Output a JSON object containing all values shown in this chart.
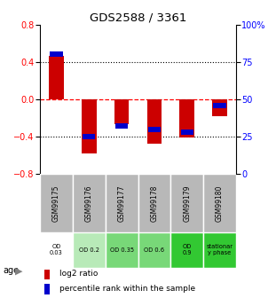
{
  "title": "GDS2588 / 3361",
  "samples": [
    "GSM99175",
    "GSM99176",
    "GSM99177",
    "GSM99178",
    "GSM99179",
    "GSM99180"
  ],
  "log2_bar_heights": [
    0.46,
    -0.58,
    -0.27,
    -0.48,
    -0.41,
    -0.18
  ],
  "pct_ranks": [
    80,
    25,
    32,
    30,
    28,
    46
  ],
  "ylim": [
    -0.8,
    0.8
  ],
  "yticks_left": [
    -0.8,
    -0.4,
    0.0,
    0.4,
    0.8
  ],
  "yticks_right": [
    0,
    25,
    50,
    75,
    100
  ],
  "bar_color_red": "#cc0000",
  "bar_color_blue": "#0000cc",
  "row1_bg": "#b8b8b8",
  "row2_colors": [
    "#ffffff",
    "#b8eab8",
    "#78d878",
    "#78d878",
    "#32c832",
    "#32c832"
  ],
  "age_labels": [
    "OD\n0.03",
    "OD 0.2",
    "OD 0.35",
    "OD 0.6",
    "OD\n0.9",
    "stationar\ny phase"
  ],
  "legend_red": "log2 ratio",
  "legend_blue": "percentile rank within the sample",
  "age_label": "age"
}
